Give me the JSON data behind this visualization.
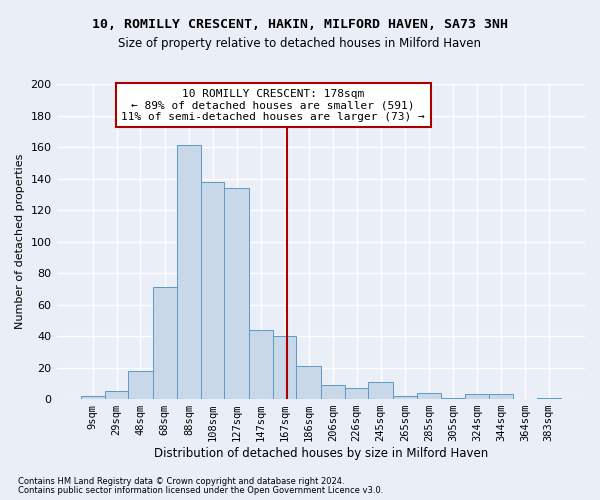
{
  "title": "10, ROMILLY CRESCENT, HAKIN, MILFORD HAVEN, SA73 3NH",
  "subtitle": "Size of property relative to detached houses in Milford Haven",
  "xlabel": "Distribution of detached houses by size in Milford Haven",
  "ylabel": "Number of detached properties",
  "footnote1": "Contains HM Land Registry data © Crown copyright and database right 2024.",
  "footnote2": "Contains public sector information licensed under the Open Government Licence v3.0.",
  "annotation_line1": "10 ROMILLY CRESCENT: 178sqm",
  "annotation_line2": "← 89% of detached houses are smaller (591)",
  "annotation_line3": "11% of semi-detached houses are larger (73) →",
  "property_size": 178,
  "bar_edges": [
    9,
    29,
    48,
    68,
    88,
    108,
    127,
    147,
    167,
    186,
    206,
    226,
    245,
    265,
    285,
    305,
    324,
    344,
    364,
    383,
    403
  ],
  "bar_heights": [
    2,
    5,
    18,
    71,
    161,
    138,
    134,
    44,
    40,
    21,
    9,
    7,
    11,
    2,
    4,
    1,
    3,
    3,
    0,
    1
  ],
  "bar_color": "#c8d8e8",
  "bar_edge_color": "#5a9bc4",
  "vline_color": "#aa0000",
  "vline_x": 178,
  "annotation_box_color": "#aa0000",
  "bg_color": "#eaeff7",
  "grid_color": "#ffffff",
  "ylim": [
    0,
    200
  ],
  "yticks": [
    0,
    20,
    40,
    60,
    80,
    100,
    120,
    140,
    160,
    180,
    200
  ],
  "title_fontsize": 9.5,
  "subtitle_fontsize": 8.5,
  "annotation_fontsize": 8,
  "ylabel_fontsize": 8,
  "xlabel_fontsize": 8.5,
  "tick_fontsize": 7.5,
  "footnote_fontsize": 6
}
